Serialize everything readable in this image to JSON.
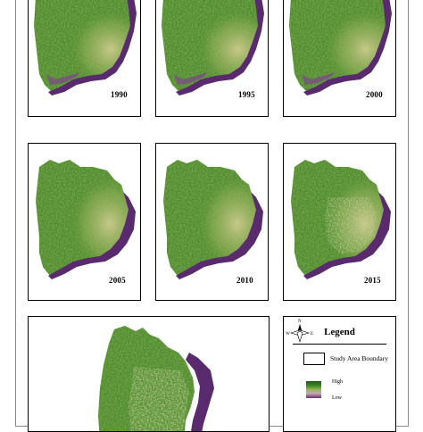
{
  "years": [
    "1990",
    "1995",
    "2000",
    "2005",
    "2010",
    "2015"
  ],
  "legend": {
    "title": "Legend",
    "boundary_label": "Study Area Boundary",
    "high_label": "High",
    "low_label": "Low",
    "compass_letters": [
      "N",
      "W",
      "E"
    ]
  },
  "colors": {
    "vegetation_dark": "#2f6b1b",
    "vegetation_mid": "#4f8d2d",
    "vegetation_light": "#a3ba68",
    "river": "#5a2a6e",
    "frame": "#000000"
  }
}
